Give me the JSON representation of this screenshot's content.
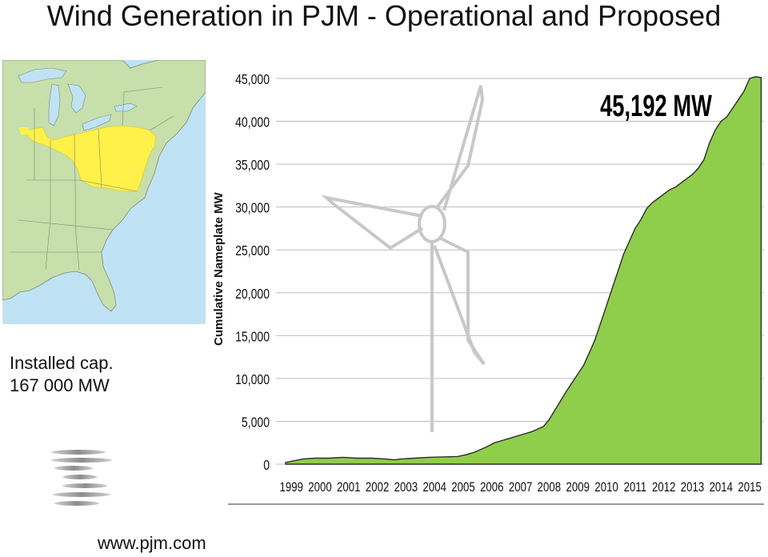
{
  "title": "Wind Generation in PJM - Operational and Proposed",
  "map": {
    "colors": {
      "water": "#bfe3f5",
      "land": "#c7dfaa",
      "pjm": "#fff04a",
      "borders": "#7d8a74"
    }
  },
  "caption": {
    "line1": "Installed cap.",
    "line2": "167 000 MW"
  },
  "footer": {
    "url": "www.pjm.com"
  },
  "logo": {
    "icon": "pjm-logo-icon"
  },
  "chart_data": {
    "type": "area",
    "ylabel": "Cumulative Nameplate MW",
    "ylim": [
      0,
      45000
    ],
    "yticks": [
      "45,000",
      "40,000",
      "35,000",
      "30,000",
      "25,000",
      "20,000",
      "15,000",
      "10,000",
      "5,000",
      "0"
    ],
    "xticks": [
      "1999",
      "2000",
      "2001",
      "2002",
      "2003",
      "2004",
      "2005",
      "2006",
      "2007",
      "2008",
      "2009",
      "2010",
      "2011",
      "2012",
      "2013",
      "2014",
      "2015"
    ],
    "annotation": "45,192 MW",
    "fill_color": "#8fce4a",
    "background_icon": "wind-turbine-icon",
    "grid": "horizontal",
    "series": [
      {
        "x": [
          1999.0,
          1999.3,
          1999.6,
          2000.0,
          2000.5,
          2001.0,
          2001.5,
          2002.0,
          2002.5,
          2002.8,
          2003.0,
          2003.5,
          2004.0,
          2004.5,
          2005.0,
          2005.3,
          2005.6,
          2006.0,
          2006.3,
          2006.6,
          2006.8,
          2007.0,
          2007.3,
          2007.6,
          2008.0,
          2008.2,
          2008.4,
          2008.6,
          2008.8,
          2009.0,
          2009.2,
          2009.4,
          2009.6,
          2009.8,
          2010.0,
          2010.2,
          2010.4,
          2010.6,
          2010.8,
          2011.0,
          2011.2,
          2011.4,
          2011.6,
          2011.8,
          2012.0,
          2012.2,
          2012.4,
          2012.6,
          2012.8,
          2013.0,
          2013.2,
          2013.4,
          2013.6,
          2013.8,
          2014.0,
          2014.2,
          2014.4,
          2014.6,
          2014.8,
          2015.0,
          2015.2,
          2015.4,
          2015.6
        ],
        "values": [
          200,
          400,
          600,
          700,
          700,
          800,
          700,
          700,
          600,
          500,
          600,
          700,
          800,
          850,
          900,
          1100,
          1400,
          2000,
          2500,
          2800,
          3000,
          3200,
          3500,
          3800,
          4400,
          5200,
          6300,
          7400,
          8500,
          9500,
          10500,
          11500,
          13000,
          14500,
          16500,
          18500,
          20500,
          22500,
          24500,
          26000,
          27500,
          28500,
          29800,
          30500,
          31000,
          31500,
          32000,
          32300,
          32800,
          33300,
          33800,
          34500,
          35500,
          37500,
          39000,
          40000,
          40500,
          41500,
          42500,
          43500,
          45000,
          45192,
          45100
        ]
      }
    ]
  }
}
